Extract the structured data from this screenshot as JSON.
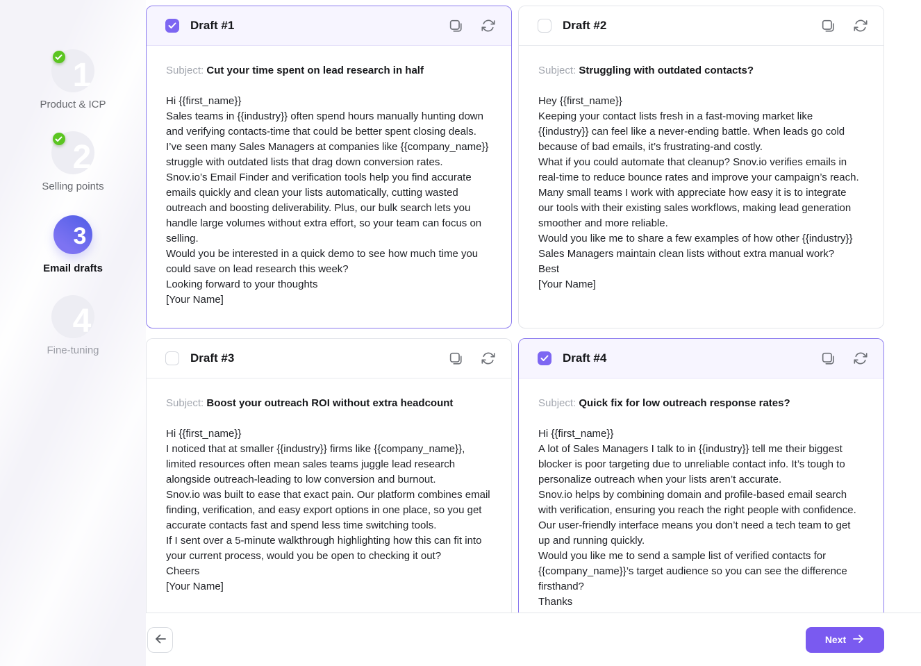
{
  "ui": {
    "subject_label": "Subject:",
    "next_button_label": "Next"
  },
  "colors": {
    "accent_purple": "#7a5af0",
    "checkbox_purple": "#7d66f2",
    "selected_card_border": "#8a79ef",
    "selected_header_bg": "#f7f5ff",
    "completed_green": "#5bc521",
    "card_border": "#e3e5ea",
    "body_text": "#202227",
    "muted_label": "#a3a7af"
  },
  "icons": {
    "header_actions": [
      "copy-icon",
      "refresh-icon"
    ],
    "step_completed": "check-badge-icon",
    "footer": [
      "arrow-left-icon",
      "arrow-right-icon"
    ]
  },
  "stepper": {
    "steps": [
      {
        "number": "1",
        "label": "Product & ICP",
        "state": "completed"
      },
      {
        "number": "2",
        "label": "Selling points",
        "state": "completed"
      },
      {
        "number": "3",
        "label": "Email drafts",
        "state": "active"
      },
      {
        "number": "4",
        "label": "Fine-tuning",
        "state": "upcoming"
      }
    ]
  },
  "drafts": [
    {
      "title": "Draft #1",
      "checked": true,
      "subject": "Cut your time spent on lead research in half",
      "body": [
        "Hi {{first_name}}",
        "Sales teams in {{industry}} often spend hours manually hunting down and verifying contacts-time that could be better spent closing deals. I’ve seen many Sales Managers at companies like {{company_name}} struggle with outdated lists that drag down conversion rates.",
        "Snov.io’s Email Finder and verification tools help you find accurate emails quickly and clean your lists automatically, cutting wasted outreach and boosting deliverability. Plus, our bulk search lets you handle large volumes without extra effort, so your team can focus on selling.",
        "Would you be interested in a quick demo to see how much time you could save on lead research this week?",
        "Looking forward to your thoughts",
        "[Your Name]"
      ]
    },
    {
      "title": "Draft #2",
      "checked": false,
      "subject": "Struggling with outdated contacts?",
      "body": [
        "Hey {{first_name}}",
        "Keeping your contact lists fresh in a fast-moving market like {{industry}} can feel like a never-ending battle. When leads go cold because of bad emails, it’s frustrating-and costly.",
        "What if you could automate that cleanup? Snov.io verifies emails in real-time to reduce bounce rates and improve your campaign’s reach. Many small teams I work with appreciate how easy it is to integrate our tools with their existing sales workflows, making lead generation smoother and more reliable.",
        "Would you like me to share a few examples of how other {{industry}} Sales Managers maintain clean lists without extra manual work?",
        "Best",
        "[Your Name]"
      ]
    },
    {
      "title": "Draft #3",
      "checked": false,
      "subject": "Boost your outreach ROI without extra headcount",
      "body": [
        "Hi {{first_name}}",
        "I noticed that at smaller {{industry}} firms like {{company_name}}, limited resources often mean sales teams juggle lead research alongside outreach-leading to low conversion and burnout.",
        "Snov.io was built to ease that exact pain. Our platform combines email finding, verification, and easy export options in one place, so you get accurate contacts fast and spend less time switching tools.",
        "If I sent over a 5-minute walkthrough highlighting how this can fit into your current process, would you be open to checking it out?",
        "Cheers",
        "[Your Name]"
      ]
    },
    {
      "title": "Draft #4",
      "checked": true,
      "subject": "Quick fix for low outreach response rates?",
      "body": [
        "Hi {{first_name}}",
        "A lot of Sales Managers I talk to in {{industry}} tell me their biggest blocker is poor targeting due to unreliable contact info. It’s tough to personalize outreach when your lists aren’t accurate.",
        "Snov.io helps by combining domain and profile-based email search with verification, ensuring you reach the right people with confidence. Our user-friendly interface means you don’t need a tech team to get up and running quickly.",
        "Would you like me to send a sample list of verified contacts for {{company_name}}’s target audience so you can see the difference firsthand?",
        "Thanks"
      ]
    }
  ]
}
